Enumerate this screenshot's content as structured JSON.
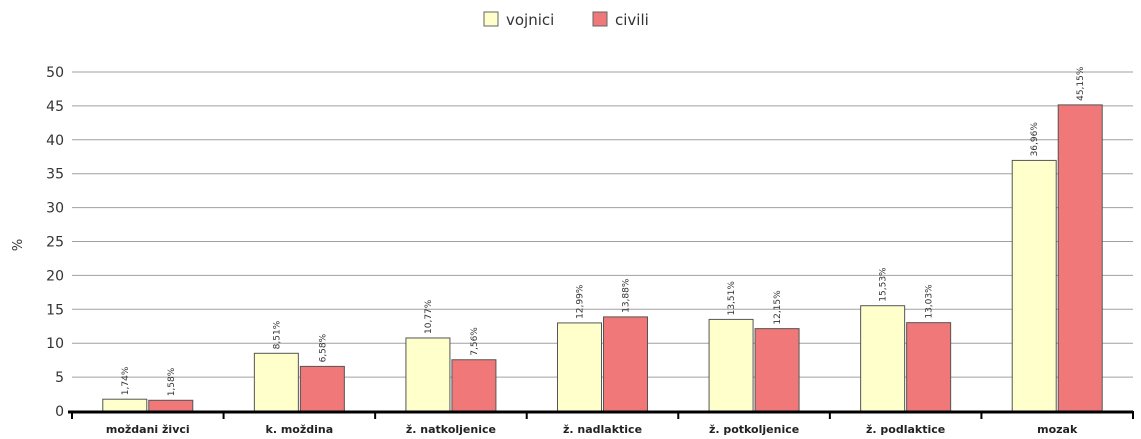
{
  "chart_data": {
    "type": "bar",
    "categories": [
      "moždani živci",
      "k. moždina",
      "ž. natkoljenice",
      "ž. nadlaktice",
      "ž. potkoljenice",
      "ž. podlaktice",
      "mozak"
    ],
    "series": [
      {
        "name": "vojnici",
        "color": "#ffffcc",
        "values": [
          1.74,
          8.51,
          10.77,
          12.99,
          13.51,
          15.53,
          36.96
        ],
        "labels": [
          "1,74%",
          "8,51%",
          "10,77%",
          "12,99%",
          "13,51%",
          "15,53%",
          "36,96%"
        ]
      },
      {
        "name": "civili",
        "color": "#f07878",
        "values": [
          1.58,
          6.58,
          7.56,
          13.88,
          12.15,
          13.03,
          45.15
        ],
        "labels": [
          "1,58%",
          "6,58%",
          "7,56%",
          "13,88%",
          "12,15%",
          "13,03%",
          "45,15%"
        ]
      }
    ],
    "yticks": [
      "0",
      "5",
      "10",
      "15",
      "20",
      "25",
      "30",
      "35",
      "40",
      "45",
      "50"
    ],
    "ylabel": "%",
    "xlabel": "",
    "ylim": [
      0,
      50
    ],
    "grid": true,
    "legend_position": "top-center"
  }
}
